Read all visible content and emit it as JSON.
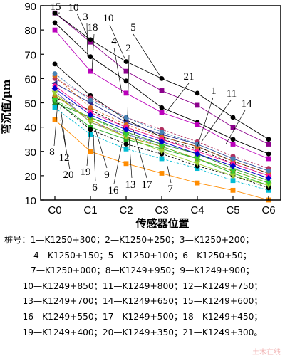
{
  "chart_data": {
    "type": "line",
    "ylabel": "弯沉值/μm",
    "xlabel": "传感器位置",
    "categories": [
      "C0",
      "C1",
      "C2",
      "C3",
      "C4",
      "C5",
      "C6"
    ],
    "ylim": [
      10,
      90
    ],
    "yticks": [
      10,
      20,
      30,
      40,
      50,
      60,
      70,
      80,
      90
    ],
    "grid": false,
    "series": [
      {
        "name": "1",
        "color": "#000000",
        "marker": "circle",
        "values": [
          66,
          53,
          43,
          36,
          32,
          26,
          21
        ]
      },
      {
        "name": "2",
        "color": "#000000",
        "marker": "circle-open",
        "values": [
          52,
          47,
          40,
          35,
          31,
          25,
          20
        ]
      },
      {
        "name": "3",
        "color": "#000000",
        "marker": "circle",
        "values": [
          83,
          69,
          59,
          48,
          42,
          35,
          29
        ]
      },
      {
        "name": "4",
        "color": "#2a2a8a",
        "marker": "triangle-left",
        "values": [
          58,
          50,
          42,
          37,
          33,
          27,
          22
        ]
      },
      {
        "name": "5",
        "color": "#b03060",
        "marker": "circle",
        "values": [
          60,
          52,
          44,
          39,
          34,
          28,
          23
        ]
      },
      {
        "name": "6",
        "color": "#6a5acd",
        "marker": "triangle-down",
        "values": [
          55,
          42,
          37,
          33,
          29,
          24,
          19
        ]
      },
      {
        "name": "7",
        "color": "#ff8c00",
        "marker": "square",
        "values": [
          43,
          30,
          25,
          21,
          17,
          14,
          10
        ]
      },
      {
        "name": "8",
        "color": "#00bcd4",
        "marker": "square",
        "values": [
          48,
          37,
          31,
          27,
          23,
          18,
          14
        ]
      },
      {
        "name": "9",
        "color": "#22aa22",
        "marker": "square",
        "values": [
          51,
          40,
          35,
          31,
          27,
          21,
          16
        ]
      },
      {
        "name": "10",
        "color": "#bb00bb",
        "marker": "square",
        "values": [
          80,
          63,
          54,
          46,
          41,
          33,
          27
        ]
      },
      {
        "name": "11",
        "color": "#d2691e",
        "marker": "circle",
        "values": [
          61,
          48,
          41,
          36,
          32,
          26,
          21
        ]
      },
      {
        "name": "12",
        "color": "#228b22",
        "marker": "triangle-up",
        "values": [
          50,
          44,
          38,
          33,
          29,
          23,
          18
        ]
      },
      {
        "name": "13",
        "color": "#ff1493",
        "marker": "circle",
        "values": [
          57,
          46,
          40,
          35,
          30,
          25,
          20
        ]
      },
      {
        "name": "14",
        "color": "#4682b4",
        "marker": "circle",
        "values": [
          62,
          51,
          44,
          38,
          33,
          27,
          22
        ]
      },
      {
        "name": "15",
        "color": "#8b008b",
        "marker": "square",
        "values": [
          87,
          75,
          63,
          55,
          49,
          40,
          33
        ]
      },
      {
        "name": "16",
        "color": "#b8860b",
        "marker": "circle",
        "values": [
          53,
          43,
          36,
          32,
          27,
          22,
          17
        ]
      },
      {
        "name": "17",
        "color": "#000000",
        "marker": "circle",
        "values": [
          51,
          39,
          33,
          29,
          24,
          20,
          15
        ]
      },
      {
        "name": "18",
        "color": "#000000",
        "marker": "circle",
        "values": [
          87,
          76,
          67,
          60,
          54,
          44,
          35
        ]
      },
      {
        "name": "19",
        "color": "#9acd32",
        "marker": "triangle-down",
        "values": [
          54,
          42,
          36,
          30,
          25,
          20,
          16
        ]
      },
      {
        "name": "20",
        "color": "#32cd32",
        "marker": "triangle-down",
        "values": [
          51,
          44,
          37,
          32,
          27,
          22,
          17
        ]
      },
      {
        "name": "21",
        "color": "#0000cd",
        "marker": "diamond",
        "values": [
          56,
          45,
          39,
          34,
          29,
          24,
          19
        ]
      }
    ],
    "annotations": [
      {
        "text": "15",
        "x": "C0",
        "y": 86
      },
      {
        "text": "10",
        "x": "C0",
        "y": 86
      },
      {
        "text": "3",
        "x": "C0",
        "y": 81
      },
      {
        "text": "18",
        "x": "C1",
        "y": 78
      },
      {
        "text": "10",
        "x": "C1",
        "y": 81
      },
      {
        "text": "4",
        "x": "C1",
        "y": 69
      },
      {
        "text": "5",
        "x": "C2",
        "y": 78
      },
      {
        "text": "2",
        "x": "C2",
        "y": 64
      },
      {
        "text": "21",
        "x": "C3",
        "y": 57
      },
      {
        "text": "1",
        "x": "C4",
        "y": 50
      },
      {
        "text": "11",
        "x": "C4",
        "y": 49
      },
      {
        "text": "14",
        "x": "C4",
        "y": 44
      },
      {
        "text": "8",
        "x": "C0",
        "y": 37
      },
      {
        "text": "12",
        "x": "C0",
        "y": 35
      },
      {
        "text": "20",
        "x": "C0",
        "y": 30
      },
      {
        "text": "19",
        "x": "C1",
        "y": 32
      },
      {
        "text": "9",
        "x": "C1",
        "y": 31
      },
      {
        "text": "6",
        "x": "C1",
        "y": 26
      },
      {
        "text": "16",
        "x": "C2",
        "y": 25
      },
      {
        "text": "13",
        "x": "C2",
        "y": 26
      },
      {
        "text": "17",
        "x": "C2",
        "y": 26
      },
      {
        "text": "7",
        "x": "C3",
        "y": 24
      }
    ]
  },
  "legend": {
    "title": "桩号：",
    "lines": [
      [
        "1—K1250+300；",
        "2—K1250+250；",
        "3—K1250+200；"
      ],
      [
        "4—K1250+150；",
        "5—K1250+100；",
        "6—K1250+50；"
      ],
      [
        "7—K1250+000；",
        "8—K1249+950；",
        "9—K1249+900；"
      ],
      [
        "10—K1249+850；",
        "11—K1249+800；",
        "12—K1249+750；"
      ],
      [
        "13—K1249+700；",
        "14—K1249+650；",
        "15—K1249+600；"
      ],
      [
        "16—K1249+550；",
        "17—K1249+500；",
        "18—K1249+450；"
      ],
      [
        "19—K1249+400；",
        "20—K1249+350；",
        "21—K1249+300。"
      ]
    ]
  },
  "watermark": "土木在线"
}
